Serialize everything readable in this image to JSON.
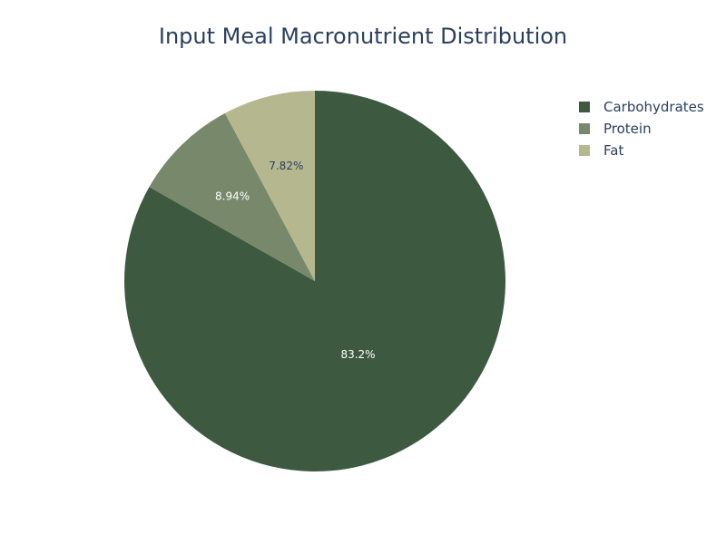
{
  "chart_data": {
    "type": "pie",
    "title": "Input Meal Macronutrient Distribution",
    "categories": [
      "Carbohydrates",
      "Protein",
      "Fat"
    ],
    "values": [
      83.2,
      8.94,
      7.82
    ],
    "labels": [
      "83.2%",
      "8.94%",
      "7.82%"
    ],
    "colors": [
      "#3d5a41",
      "#77896a",
      "#b5b88f"
    ],
    "label_colors": [
      "#ffffff",
      "#ffffff",
      "#2a3f5f"
    ],
    "legend_position": "top-right",
    "direction": "clockwise",
    "start": "12 o'clock"
  }
}
